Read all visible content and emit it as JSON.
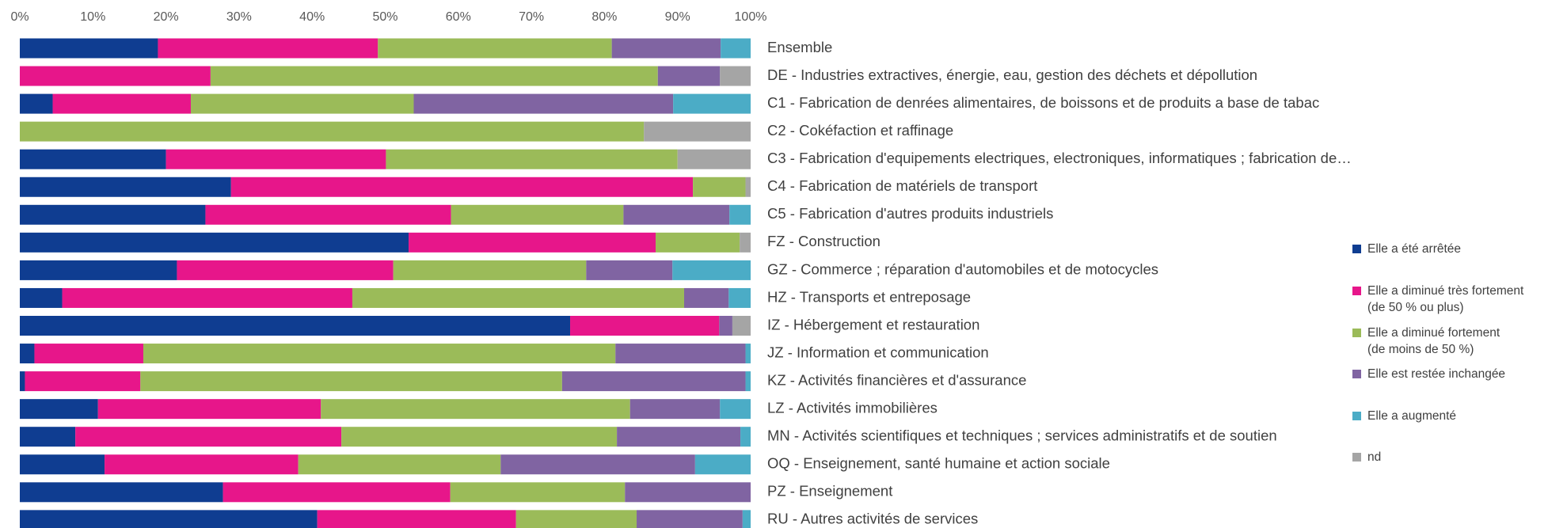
{
  "chart_data": {
    "type": "stacked-barh",
    "categories": [
      "Ensemble",
      "DE - Industries extractives,  énergie, eau, gestion des déchets et dépollution",
      "C1 - Fabrication de denrées alimentaires, de boissons et  de produits a base de tabac",
      "C2 - Cokéfaction et raffinage",
      "C3 - Fabrication d'equipements electriques, electroniques, informatiques ; fabrication de…",
      "C4 - Fabrication de matériels de transport",
      "C5 - Fabrication d'autres produits industriels",
      "FZ - Construction",
      "GZ - Commerce ; réparation d'automobiles et de motocycles",
      "HZ - Transports et entreposage",
      "IZ - Hébergement et restauration",
      "JZ - Information et communication",
      "KZ - Activités financières et d'assurance",
      "LZ - Activités immobilières",
      "MN - Activités scientifiques et techniques ; services administratifs et de soutien",
      "OQ - Enseignement, santé humaine et action sociale",
      "PZ - Enseignement",
      "RU - Autres activités de services"
    ],
    "series": [
      {
        "name": "Elle a été arrêtée",
        "color": "#0f3d91",
        "values": [
          18.9,
          0,
          4.5,
          0,
          20.0,
          28.9,
          25.4,
          53.2,
          21.5,
          5.8,
          75.3,
          2.0,
          0.7,
          10.7,
          7.6,
          11.6,
          27.8,
          40.7
        ]
      },
      {
        "name": "Elle a diminué très fortement\n(de 50 % ou plus)",
        "color": "#e7168a",
        "values": [
          30.1,
          26.1,
          18.9,
          0,
          30.1,
          63.2,
          33.6,
          33.8,
          29.6,
          39.7,
          20.4,
          14.9,
          15.8,
          30.5,
          36.4,
          26.5,
          31.1,
          27.2
        ]
      },
      {
        "name": "Elle a diminué fortement\n(de moins de 50 %)",
        "color": "#9bbb59",
        "values": [
          32.0,
          61.2,
          30.5,
          85.4,
          39.9,
          7.2,
          23.6,
          11.5,
          26.4,
          45.4,
          0,
          64.6,
          57.7,
          42.3,
          37.7,
          27.7,
          23.9,
          16.5
        ]
      },
      {
        "name": "Elle est restée inchangée",
        "color": "#8064a2",
        "values": [
          14.9,
          8.5,
          35.5,
          0,
          0,
          0,
          14.5,
          0,
          11.8,
          6.1,
          1.8,
          17.8,
          25.1,
          12.3,
          16.9,
          26.6,
          17.2,
          14.5
        ]
      },
      {
        "name": "Elle a augmenté",
        "color": "#4bacc6",
        "values": [
          4.1,
          0,
          10.6,
          0,
          0,
          0,
          2.9,
          0,
          10.7,
          3.0,
          0,
          0.7,
          0.7,
          4.2,
          1.4,
          7.6,
          0,
          1.1
        ]
      },
      {
        "name": "nd",
        "color": "#a5a5a5",
        "values": [
          0,
          4.2,
          0,
          14.6,
          10.0,
          0.7,
          0,
          1.5,
          0,
          0,
          2.5,
          0,
          0,
          0,
          0,
          0,
          0,
          0
        ]
      }
    ],
    "xlim": [
      0,
      100
    ],
    "xticks": [
      {
        "value": 0,
        "label": "0%"
      },
      {
        "value": 10,
        "label": "10%"
      },
      {
        "value": 20,
        "label": "20%"
      },
      {
        "value": 30,
        "label": "30%"
      },
      {
        "value": 40,
        "label": "40%"
      },
      {
        "value": 50,
        "label": "50%"
      },
      {
        "value": 60,
        "label": "60%"
      },
      {
        "value": 70,
        "label": "70%"
      },
      {
        "value": 80,
        "label": "80%"
      },
      {
        "value": 90,
        "label": "90%"
      },
      {
        "value": 100,
        "label": "100%"
      }
    ],
    "legend": "right"
  }
}
